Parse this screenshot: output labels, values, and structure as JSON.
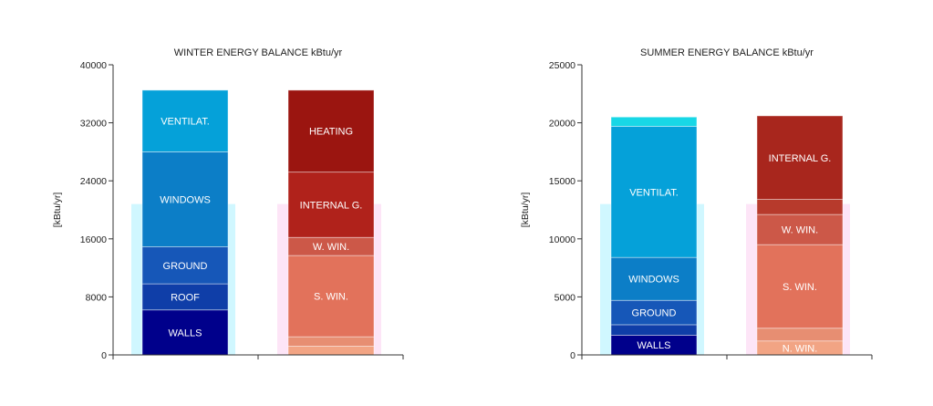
{
  "chart_data": [
    {
      "type": "bar",
      "stacked": true,
      "title": "WINTER ENERGY BALANCE kBtu/yr",
      "ylabel": "[kBtu/yr]",
      "ylim": [
        0,
        40000
      ],
      "yticks": [
        "40000",
        "32000",
        "24000",
        "16000",
        "8000",
        "0"
      ],
      "tick_values": [
        40000,
        32000,
        24000,
        16000,
        8000,
        0
      ],
      "grid": false,
      "stacks": [
        {
          "name": "losses",
          "segments": [
            {
              "label": "WALLS",
              "value": 6200,
              "color": "#00008b"
            },
            {
              "label": "ROOF",
              "value": 3600,
              "color": "#0f3ea8"
            },
            {
              "label": "GROUND",
              "value": 5100,
              "color": "#1657b8"
            },
            {
              "label": "WINDOWS",
              "value": 13100,
              "color": "#0c7ec7"
            },
            {
              "label": "VENTILAT.",
              "value": 8500,
              "color": "#05a1d9"
            }
          ]
        },
        {
          "name": "gains",
          "segments": [
            {
              "label": "",
              "value": 1200,
              "color": "#f2a484"
            },
            {
              "label": "",
              "value": 1300,
              "color": "#e78e72"
            },
            {
              "label": "S. WIN.",
              "value": 11200,
              "color": "#e2725b"
            },
            {
              "label": "W. WIN.",
              "value": 2500,
              "color": "#cc5848"
            },
            {
              "label": "INTERNAL G.",
              "value": 9000,
              "color": "#b0221b"
            },
            {
              "label": "HEATING",
              "value": 11300,
              "color": "#9b1510"
            }
          ]
        }
      ]
    },
    {
      "type": "bar",
      "stacked": true,
      "title": "SUMMER ENERGY BALANCE kBtu/yr",
      "ylabel": "[kBtu/yr]",
      "ylim": [
        0,
        25000
      ],
      "yticks": [
        "25000",
        "20000",
        "15000",
        "10000",
        "5000",
        "0"
      ],
      "tick_values": [
        25000,
        20000,
        15000,
        10000,
        5000,
        0
      ],
      "grid": false,
      "stacks": [
        {
          "name": "losses",
          "segments": [
            {
              "label": "WALLS",
              "value": 1700,
              "color": "#00008b"
            },
            {
              "label": "",
              "value": 900,
              "color": "#0f3ea8"
            },
            {
              "label": "GROUND",
              "value": 2100,
              "color": "#1657b8"
            },
            {
              "label": "WINDOWS",
              "value": 3700,
              "color": "#0c7ec7"
            },
            {
              "label": "VENTILAT.",
              "value": 11300,
              "color": "#05a1d9"
            },
            {
              "label": "",
              "value": 800,
              "color": "#18d7e6"
            }
          ]
        },
        {
          "name": "gains",
          "segments": [
            {
              "label": "N. WIN.",
              "value": 1200,
              "color": "#f2a484"
            },
            {
              "label": "",
              "value": 1100,
              "color": "#e78e72"
            },
            {
              "label": "S. WIN.",
              "value": 7200,
              "color": "#e2725b"
            },
            {
              "label": "W. WIN.",
              "value": 2600,
              "color": "#cc5848"
            },
            {
              "label": "",
              "value": 1300,
              "color": "#b73a2c"
            },
            {
              "label": "INTERNAL G.",
              "value": 7200,
              "color": "#a8261d"
            }
          ]
        }
      ]
    }
  ]
}
